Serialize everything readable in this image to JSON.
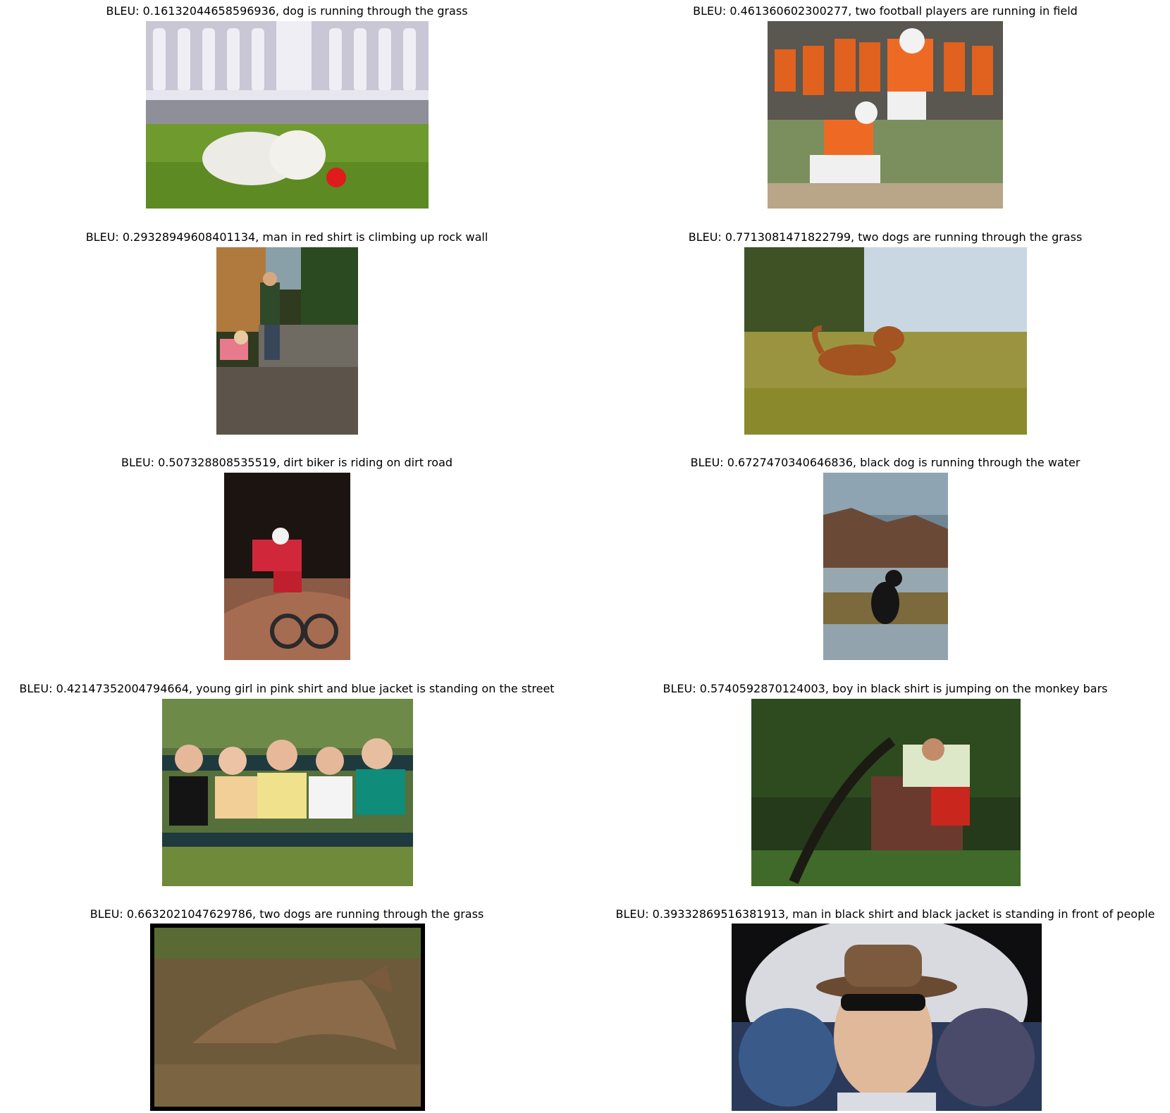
{
  "panels": [
    {
      "caption": "BLEU: 0.16132044658596936, dog is running through the grass",
      "scene": "white-dog-red-ball"
    },
    {
      "caption": "BLEU: 0.461360602300277, two football players are running in field",
      "scene": "football-kick"
    },
    {
      "caption": "BLEU: 0.29328949608401134, man in red shirt is climbing up rock wall",
      "scene": "kids-at-creek"
    },
    {
      "caption": "BLEU: 0.7713081471822799, two dogs are running through the grass",
      "scene": "brown-dog-in-field"
    },
    {
      "caption": "BLEU: 0.507328808535519, dirt biker is riding on dirt road",
      "scene": "mountain-biker"
    },
    {
      "caption": "BLEU: 0.6727470340646836, black dog is running through the water",
      "scene": "black-dog-in-water"
    },
    {
      "caption": "BLEU: 0.42147352004794664, young girl in pink shirt and blue jacket is standing on the street",
      "scene": "children-on-bench"
    },
    {
      "caption": "BLEU: 0.5740592870124003, boy in black shirt is jumping on the monkey bars",
      "scene": "man-leaning-back"
    },
    {
      "caption": "BLEU: 0.6632021047629786, two dogs are running through the grass",
      "scene": "brindle-dog-running"
    },
    {
      "caption": "BLEU: 0.39332869516381913, man in black shirt and black jacket is standing in front of people",
      "scene": "man-in-hat-sunglasses"
    }
  ]
}
